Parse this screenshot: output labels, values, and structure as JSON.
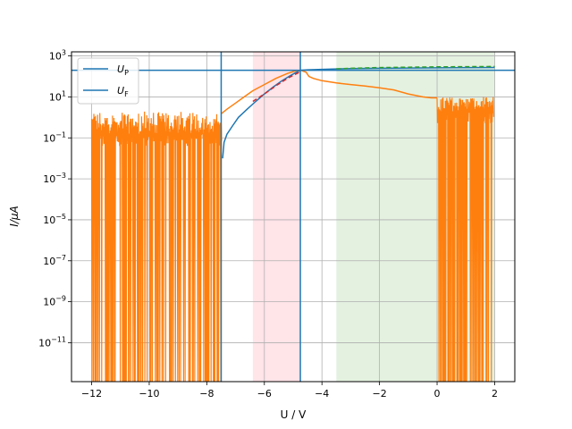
{
  "chart_data": {
    "type": "line",
    "xlabel": "U / V",
    "ylabel": "I/µA",
    "y_scale": "log",
    "xlim": [
      -12.7,
      2.7
    ],
    "ylim_log10": [
      -12.9,
      3.2
    ],
    "grid": true,
    "legend_position": "top-left",
    "x_ticks": [
      {
        "value": -12,
        "label": "−12"
      },
      {
        "value": -10,
        "label": "−10"
      },
      {
        "value": -8,
        "label": "−8"
      },
      {
        "value": -6,
        "label": "−6"
      },
      {
        "value": -4,
        "label": "−4"
      },
      {
        "value": -2,
        "label": "−2"
      },
      {
        "value": 0,
        "label": "0"
      },
      {
        "value": 2,
        "label": "2"
      }
    ],
    "y_ticks": [
      {
        "exp": 3,
        "base": "10",
        "sup": "3"
      },
      {
        "exp": 1,
        "base": "10",
        "sup": "1"
      },
      {
        "exp": -1,
        "base": "10",
        "sup": "−1"
      },
      {
        "exp": -3,
        "base": "10",
        "sup": "−3"
      },
      {
        "exp": -5,
        "base": "10",
        "sup": "−5"
      },
      {
        "exp": -7,
        "base": "10",
        "sup": "−7"
      },
      {
        "exp": -9,
        "base": "10",
        "sup": "−9"
      },
      {
        "exp": -11,
        "base": "10",
        "sup": "−11"
      }
    ],
    "legend": [
      {
        "symbol": "U",
        "subscript": "P",
        "color": "#1f77b4"
      },
      {
        "symbol": "U",
        "subscript": "F",
        "color": "#1f77b4"
      }
    ],
    "reference_lines": {
      "horizontal_y": 200,
      "vertical_x": [
        -7.5,
        -4.75
      ],
      "color": "#1f77b4"
    },
    "shaded_regions": [
      {
        "x": [
          -6.4,
          -4.75
        ],
        "color": "#ffe4e8"
      },
      {
        "x": [
          -3.5,
          2.0
        ],
        "color": "#e4f1e0"
      }
    ],
    "series": [
      {
        "color": "#1f77b4",
        "style": "solid",
        "points": [
          [
            -7.45,
            0.01
          ],
          [
            -7.4,
            0.06
          ],
          [
            -7.3,
            0.15
          ],
          [
            -7.1,
            0.4
          ],
          [
            -6.9,
            1.0
          ],
          [
            -6.6,
            2.5
          ],
          [
            -6.3,
            6
          ],
          [
            -6.0,
            14
          ],
          [
            -5.7,
            30
          ],
          [
            -5.4,
            60
          ],
          [
            -5.1,
            110
          ],
          [
            -4.85,
            170
          ],
          [
            -4.75,
            200
          ],
          [
            -4.5,
            210
          ],
          [
            -4.0,
            222
          ],
          [
            -3.5,
            232
          ],
          [
            -3.0,
            240
          ],
          [
            -2.0,
            250
          ],
          [
            0.0,
            262
          ],
          [
            2.0,
            272
          ]
        ]
      },
      {
        "color": "#ff7f0e",
        "style": "solid",
        "regions": [
          {
            "x_range": [
              -12.0,
              -7.5
            ],
            "upper_log10_range": [
              -0.8,
              0.3
            ],
            "baseline_log10": -13.0
          },
          {
            "x_range": [
              0.0,
              1.95
            ],
            "upper_log10_range": [
              0.3,
              1.0
            ],
            "baseline_log10": -13.0
          }
        ],
        "points": [
          [
            -7.5,
            1.5
          ],
          [
            -7.3,
            2.5
          ],
          [
            -7.0,
            5
          ],
          [
            -6.7,
            10
          ],
          [
            -6.4,
            20
          ],
          [
            -6.0,
            40
          ],
          [
            -5.6,
            80
          ],
          [
            -5.2,
            140
          ],
          [
            -4.9,
            190
          ],
          [
            -4.75,
            200
          ],
          [
            -4.55,
            160
          ],
          [
            -4.45,
            100
          ],
          [
            -4.3,
            80
          ],
          [
            -4.0,
            62
          ],
          [
            -3.5,
            48
          ],
          [
            -3.0,
            40
          ],
          [
            -2.5,
            34
          ],
          [
            -2.0,
            28
          ],
          [
            -1.5,
            22
          ],
          [
            -1.0,
            14
          ],
          [
            -0.5,
            10
          ],
          [
            -0.2,
            9
          ],
          [
            0.0,
            9
          ]
        ]
      },
      {
        "color": "#d62728",
        "style": "dashed",
        "points": [
          [
            -6.4,
            6
          ],
          [
            -6.0,
            14
          ],
          [
            -5.6,
            35
          ],
          [
            -5.2,
            80
          ],
          [
            -4.75,
            170
          ]
        ]
      },
      {
        "color": "#2ca02c",
        "style": "dashed",
        "points": [
          [
            -3.5,
            235
          ],
          [
            -3.0,
            250
          ],
          [
            -2.0,
            270
          ],
          [
            -1.0,
            282
          ],
          [
            0.0,
            292
          ],
          [
            1.0,
            300
          ],
          [
            2.0,
            305
          ]
        ]
      }
    ]
  }
}
